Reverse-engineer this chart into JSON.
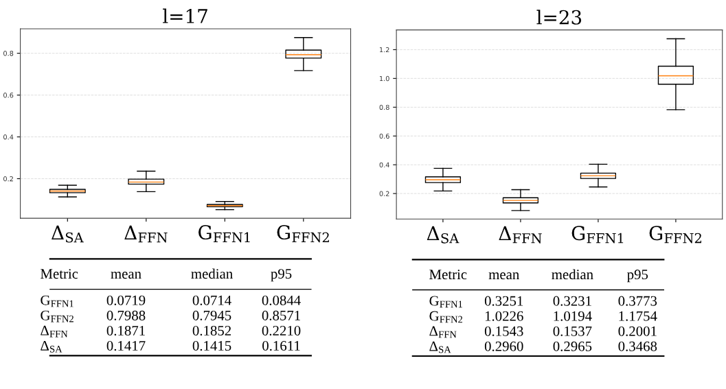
{
  "chart_data": [
    {
      "type": "box",
      "title": "l=17",
      "categories": [
        "Δ$_{SA}$",
        "Δ$_{FFN}$",
        "G$_{FFN1}$",
        "G$_{FFN2}$"
      ],
      "boxes": [
        {
          "low": 0.113,
          "q1": 0.133,
          "median": 0.141,
          "q3": 0.149,
          "high": 0.169
        },
        {
          "low": 0.138,
          "q1": 0.174,
          "median": 0.184,
          "q3": 0.198,
          "high": 0.236
        },
        {
          "low": 0.052,
          "q1": 0.066,
          "median": 0.071,
          "q3": 0.077,
          "high": 0.091
        },
        {
          "low": 0.717,
          "q1": 0.777,
          "median": 0.793,
          "q3": 0.815,
          "high": 0.875
        }
      ],
      "ylim": [
        0.011,
        0.917
      ],
      "yticks": [
        0.2,
        0.4,
        0.6,
        0.8
      ],
      "grid": "y",
      "annotations": [
        "Metric\tmean\tmedian\tp95",
        "G$_{FFN1}$\t0.0719\t0.0714\t0.0844",
        "G$_{FFN2}$\t0.7988\t0.7945\t0.8571",
        "Δ$_{FFN}$\t0.1871\t0.1852\t0.2210",
        "Δ$_{SA}$\t0.1417\t0.1415\t0.1611"
      ]
    },
    {
      "type": "box",
      "title": "l=23",
      "categories": [
        "Δ$_{SA}$",
        "Δ$_{FFN}$",
        "G$_{FFN1}$",
        "G$_{FFN2}$"
      ],
      "boxes": [
        {
          "low": 0.218,
          "q1": 0.276,
          "median": 0.296,
          "q3": 0.316,
          "high": 0.375
        },
        {
          "low": 0.082,
          "q1": 0.135,
          "median": 0.152,
          "q3": 0.171,
          "high": 0.227
        },
        {
          "low": 0.246,
          "q1": 0.305,
          "median": 0.324,
          "q3": 0.342,
          "high": 0.404
        },
        {
          "low": 0.783,
          "q1": 0.96,
          "median": 1.018,
          "q3": 1.085,
          "high": 1.276
        }
      ],
      "ylim": [
        0.023,
        1.337
      ],
      "yticks": [
        0.2,
        0.4,
        0.6,
        0.8,
        {
          "value": 1.0,
          "label": "1.0"
        },
        1.2
      ],
      "grid": "y",
      "annotations": [
        "Metric\tmean\tmedian\tp95",
        "G$_{FFN1}$\t0.3251\t0.3231\t0.3773",
        "G$_{FFN2}$\t1.0226\t1.0194\t1.1754",
        "Δ$_{FFN}$\t0.1543\t0.1537\t0.2001",
        "Δ$_{SA}$\t0.2960\t0.2965\t0.3468"
      ]
    }
  ]
}
